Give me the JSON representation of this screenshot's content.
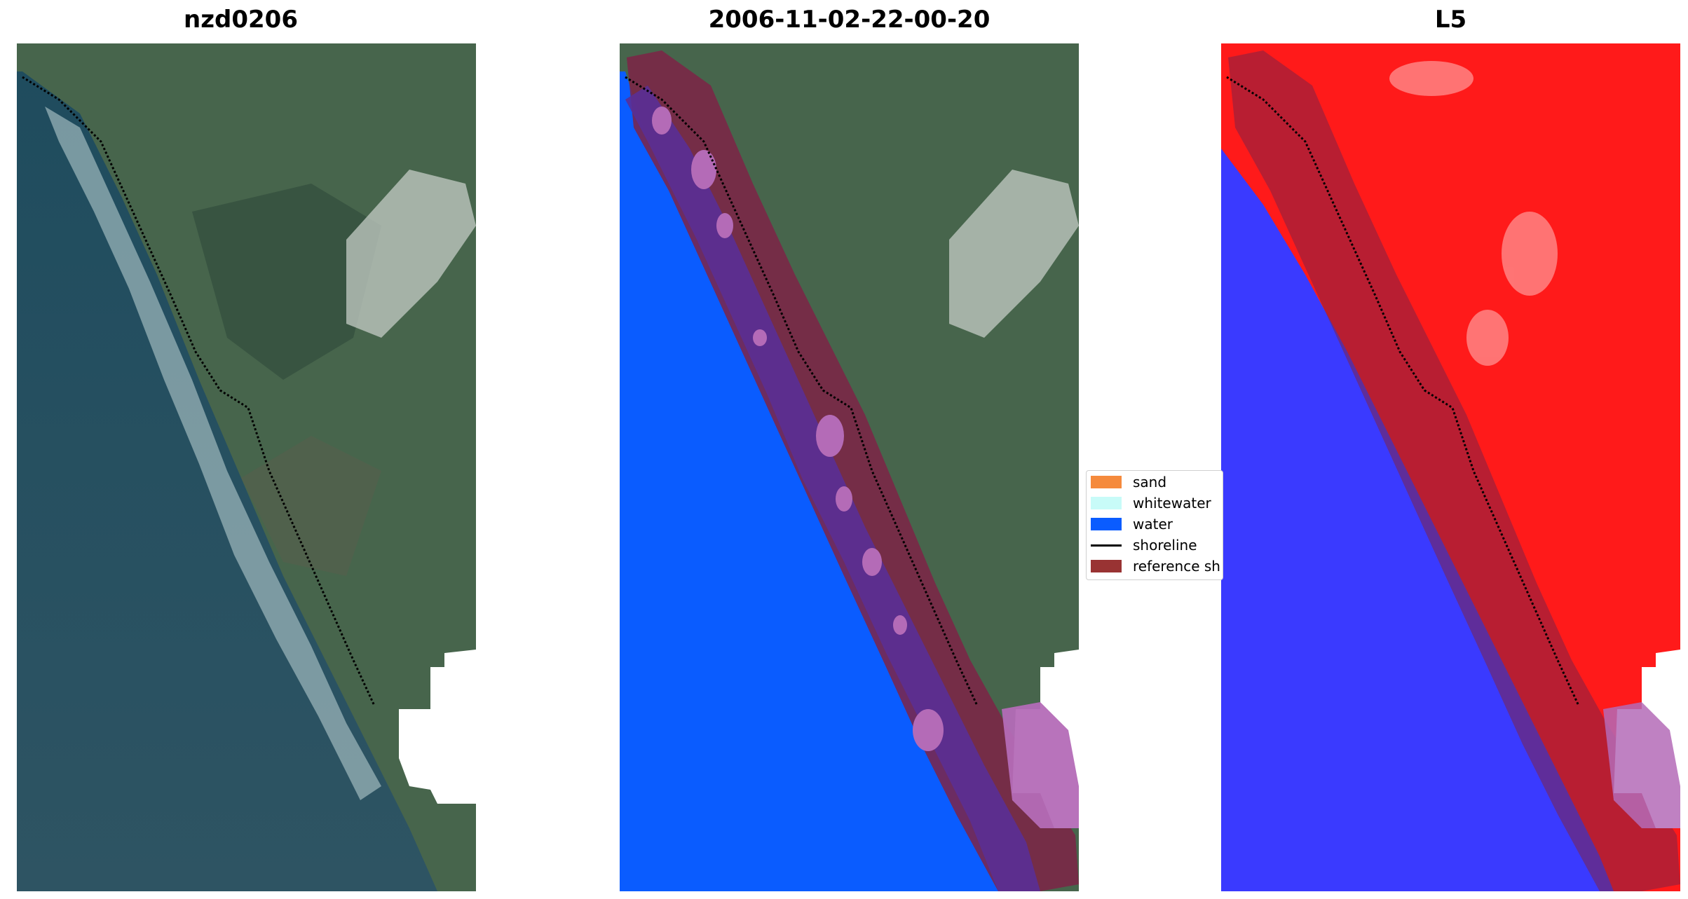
{
  "titles": {
    "left": "nzd0206",
    "center": "2006-11-02-22-00-20",
    "right": "L5"
  },
  "legend": {
    "items": [
      {
        "label": "sand",
        "color": "#f58a3c"
      },
      {
        "label": "whitewater",
        "color": "#c8fbf8"
      },
      {
        "label": "water",
        "color": "#0a5cff"
      },
      {
        "label": "shoreline",
        "color": "#000000"
      },
      {
        "label": "reference sh",
        "color": "#993333"
      }
    ]
  },
  "colors": {
    "ocean": "#274b5a",
    "land": "#44604a",
    "water_class": "#0a5cff",
    "buffer": "#7e2347",
    "buffer_on_water": "#5a2f96",
    "patch": "#b46bb7",
    "index_positive": "#ff1a1a",
    "index_negative": "#3a3aff"
  }
}
